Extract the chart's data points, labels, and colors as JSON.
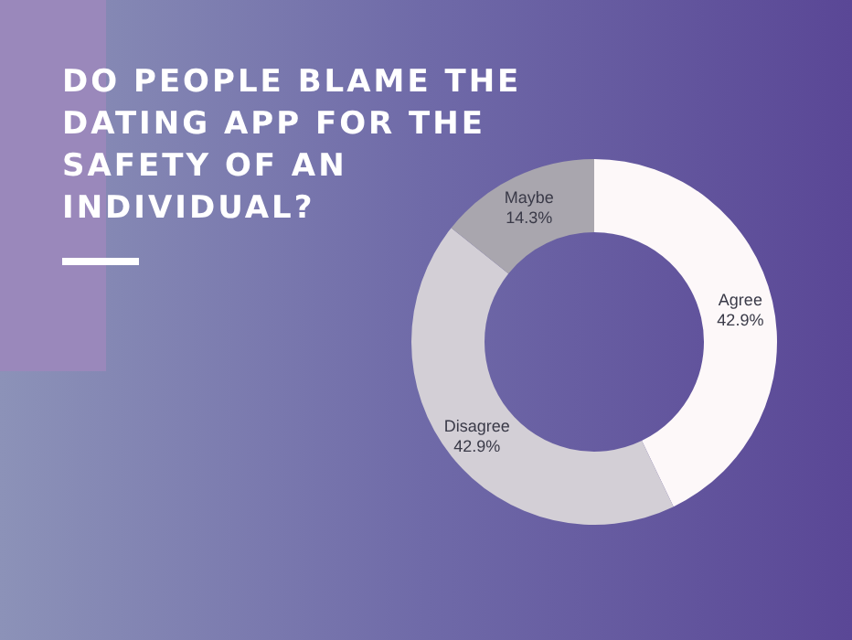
{
  "chart_data": {
    "type": "donut",
    "title": "DO PEOPLE BLAME THE DATING APP FOR THE SAFETY OF AN INDIVIDUAL?",
    "categories": [
      "Agree",
      "Disagree",
      "Maybe"
    ],
    "values": [
      42.9,
      42.9,
      14.3
    ],
    "value_labels": [
      "42.9%",
      "42.9%",
      "14.3%"
    ],
    "colors": [
      "#fdf8f9",
      "#d3cfd6",
      "#a9a6ae"
    ]
  }
}
